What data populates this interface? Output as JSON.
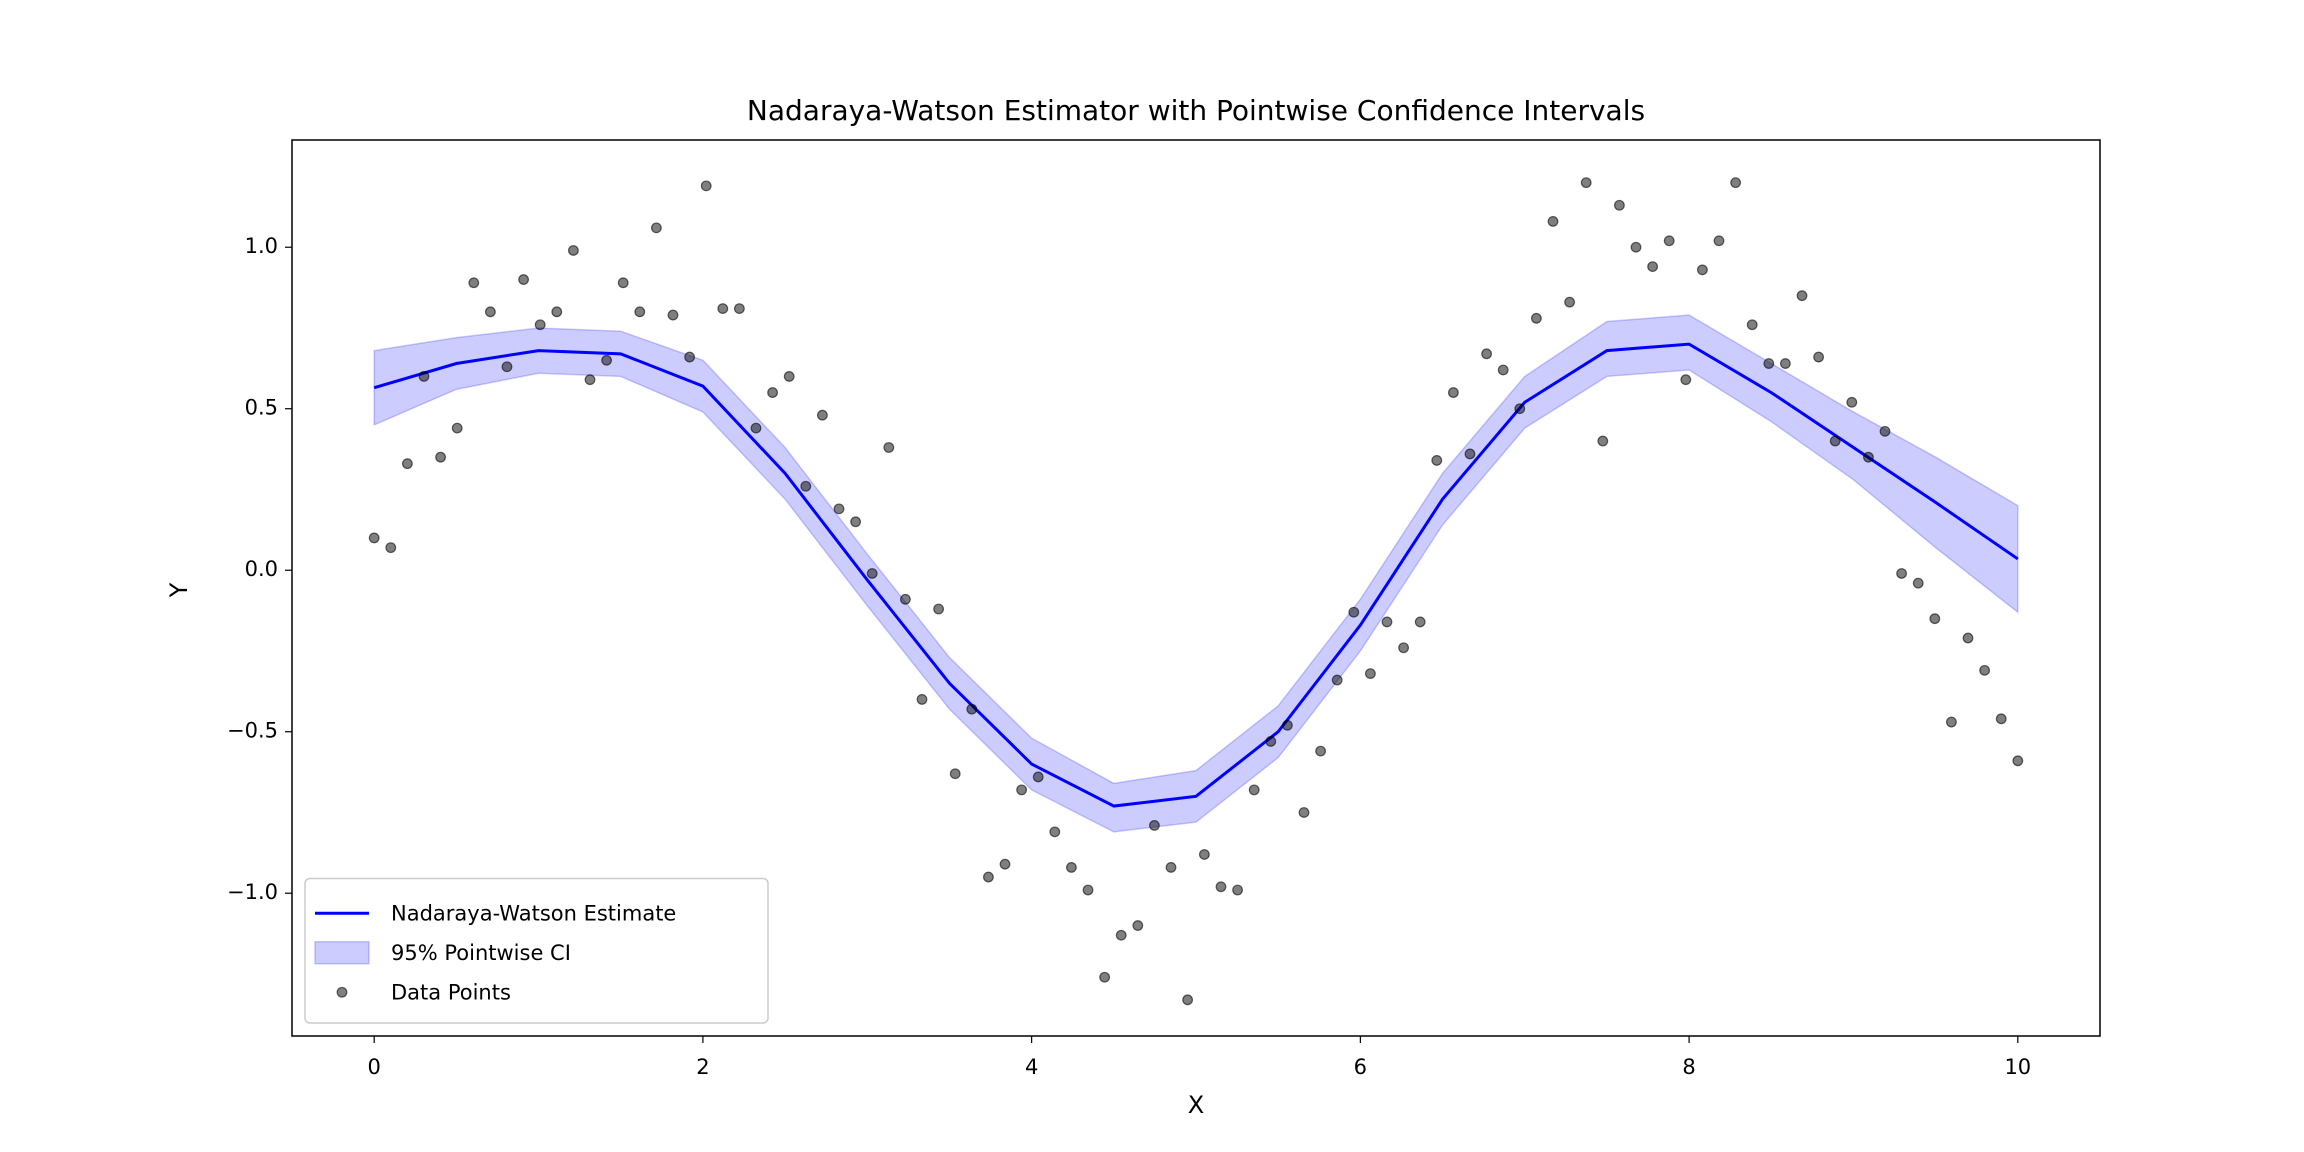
{
  "chart_data": {
    "type": "line",
    "title": "Nadaraya-Watson Estimator with Pointwise Confidence Intervals",
    "xlabel": "X",
    "ylabel": "Y",
    "xlim": [
      -0.5,
      10.5
    ],
    "ylim": [
      -1.442,
      1.332
    ],
    "xticks": [
      0,
      2,
      4,
      6,
      8,
      10
    ],
    "yticks": [
      {
        "value": -1.0,
        "label": "−1.0"
      },
      {
        "value": -0.5,
        "label": "−0.5"
      },
      {
        "value": 0.0,
        "label": "0.0"
      },
      0.5,
      {
        "value": 1.0,
        "label": "1.0"
      }
    ],
    "legend": "lower left",
    "series": [
      {
        "name": "Nadaraya-Watson Estimate",
        "type": "line",
        "color": "#0000ff",
        "x": [
          0,
          0.5,
          1,
          1.5,
          2,
          2.5,
          3,
          3.5,
          4,
          4.5,
          5,
          5.5,
          6,
          6.5,
          7,
          7.5,
          8,
          8.5,
          9,
          9.5,
          10
        ],
        "values": [
          0.565,
          0.64,
          0.68,
          0.67,
          0.57,
          0.3,
          -0.03,
          -0.35,
          -0.6,
          -0.73,
          -0.7,
          -0.5,
          -0.17,
          0.22,
          0.52,
          0.68,
          0.7,
          0.55,
          0.38,
          0.21,
          0.035
        ]
      },
      {
        "name": "95% Pointwise CI",
        "type": "band",
        "color": "#0000ff",
        "x": [
          0,
          0.5,
          1,
          1.5,
          2,
          2.5,
          3,
          3.5,
          4,
          4.5,
          5,
          5.5,
          6,
          6.5,
          7,
          7.5,
          8,
          8.5,
          9,
          9.5,
          10
        ],
        "lower": [
          0.45,
          0.56,
          0.61,
          0.6,
          0.49,
          0.22,
          -0.11,
          -0.43,
          -0.68,
          -0.81,
          -0.78,
          -0.58,
          -0.25,
          0.14,
          0.44,
          0.6,
          0.62,
          0.46,
          0.28,
          0.07,
          -0.13
        ],
        "upper": [
          0.68,
          0.72,
          0.75,
          0.74,
          0.65,
          0.38,
          0.05,
          -0.27,
          -0.52,
          -0.66,
          -0.62,
          -0.42,
          -0.09,
          0.3,
          0.6,
          0.77,
          0.79,
          0.64,
          0.49,
          0.35,
          0.2
        ]
      },
      {
        "name": "Data Points",
        "type": "scatter",
        "color": "#000000",
        "x": [
          0,
          0.101,
          0.202,
          0.303,
          0.404,
          0.505,
          0.606,
          0.707,
          0.808,
          0.909,
          1.01,
          1.111,
          1.212,
          1.313,
          1.414,
          1.515,
          1.616,
          1.717,
          1.818,
          1.919,
          2.02,
          2.121,
          2.222,
          2.323,
          2.424,
          2.525,
          2.626,
          2.727,
          2.828,
          2.929,
          3.03,
          3.131,
          3.232,
          3.333,
          3.434,
          3.535,
          3.636,
          3.737,
          3.838,
          3.939,
          4.04,
          4.141,
          4.242,
          4.343,
          4.444,
          4.545,
          4.646,
          4.747,
          4.848,
          4.949,
          5.051,
          5.152,
          5.253,
          5.354,
          5.455,
          5.556,
          5.657,
          5.758,
          5.859,
          5.96,
          6.061,
          6.162,
          6.263,
          6.364,
          6.465,
          6.566,
          6.667,
          6.768,
          6.869,
          6.97,
          7.071,
          7.172,
          7.273,
          7.374,
          7.475,
          7.576,
          7.677,
          7.778,
          7.879,
          7.98,
          8.081,
          8.182,
          8.283,
          8.384,
          8.485,
          8.586,
          8.687,
          8.788,
          8.889,
          8.99,
          9.091,
          9.192,
          9.293,
          9.394,
          9.495,
          9.596,
          9.697,
          9.798,
          9.899,
          10
        ],
        "values": [
          0.1,
          0.07,
          0.33,
          0.6,
          0.35,
          0.44,
          0.89,
          0.8,
          0.63,
          0.9,
          0.76,
          0.8,
          0.99,
          0.59,
          0.65,
          0.89,
          0.8,
          1.06,
          0.79,
          0.66,
          1.19,
          0.81,
          0.81,
          0.44,
          0.55,
          0.6,
          0.26,
          0.48,
          0.19,
          0.15,
          -0.01,
          0.38,
          -0.09,
          -0.4,
          -0.12,
          -0.63,
          -0.43,
          -0.95,
          -0.91,
          -0.68,
          -0.64,
          -0.81,
          -0.92,
          -0.99,
          -1.26,
          -1.13,
          -1.1,
          -0.79,
          -0.92,
          -1.33,
          -0.88,
          -0.98,
          -0.99,
          -0.68,
          -0.53,
          -0.48,
          -0.75,
          -0.56,
          -0.34,
          -0.13,
          -0.32,
          -0.16,
          -0.24,
          -0.16,
          0.34,
          0.55,
          0.36,
          0.67,
          0.62,
          0.5,
          0.78,
          1.08,
          0.83,
          1.2,
          0.4,
          1.13,
          1.0,
          0.94,
          1.02,
          0.59,
          0.93,
          1.02,
          1.2,
          0.76,
          0.64,
          0.64,
          0.85,
          0.66,
          0.4,
          0.52,
          0.35,
          0.43,
          -0.01,
          -0.04,
          -0.15,
          -0.47,
          -0.21,
          -0.31,
          -0.46,
          -0.59
        ]
      }
    ]
  }
}
